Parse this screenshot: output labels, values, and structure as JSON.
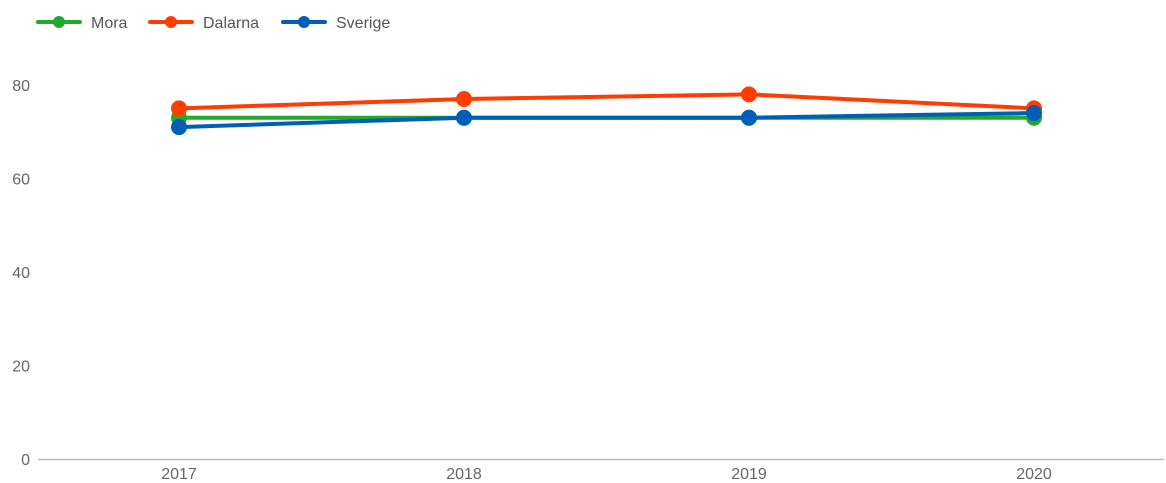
{
  "chart_data": {
    "type": "line",
    "title": "",
    "xlabel": "",
    "ylabel": "",
    "categories": [
      "2017",
      "2018",
      "2019",
      "2020"
    ],
    "ylim": [
      0,
      90
    ],
    "yticks": [
      0,
      20,
      40,
      60,
      80
    ],
    "grid": false,
    "legend_position": "top-left",
    "series": [
      {
        "name": "Mora",
        "color": "#22aa2c",
        "values": [
          73,
          73,
          73,
          73
        ]
      },
      {
        "name": "Dalarna",
        "color": "#ff3d00",
        "values": [
          75,
          77,
          78,
          75
        ]
      },
      {
        "name": "Sverige",
        "color": "#005eb8",
        "values": [
          71,
          73,
          73,
          74
        ]
      }
    ]
  }
}
